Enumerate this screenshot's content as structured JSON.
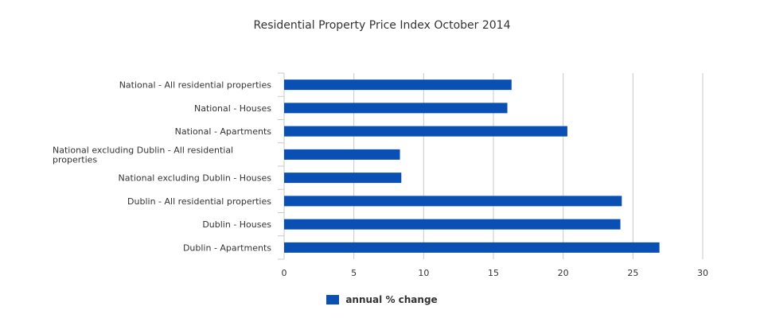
{
  "chart_data": {
    "type": "bar",
    "orientation": "horizontal",
    "title": "Residential Property Price Index October 2014",
    "categories": [
      "National - All residential properties",
      "National - Houses",
      "National - Apartments",
      "National excluding Dublin - All residential properties",
      "National excluding Dublin - Houses",
      "Dublin - All residential properties",
      "Dublin - Houses",
      "Dublin - Apartments"
    ],
    "series": [
      {
        "name": "annual % change",
        "values": [
          16.3,
          16.0,
          20.3,
          8.3,
          8.4,
          24.2,
          24.1,
          26.9
        ]
      }
    ],
    "xlim": [
      0,
      30
    ],
    "xticks": [
      0,
      5,
      10,
      15,
      20,
      25,
      30
    ],
    "grid": true,
    "legend_position": "bottom",
    "colors": {
      "bar": "#0a4fb3",
      "grid": "#c8c8c8",
      "text": "#333333"
    }
  }
}
